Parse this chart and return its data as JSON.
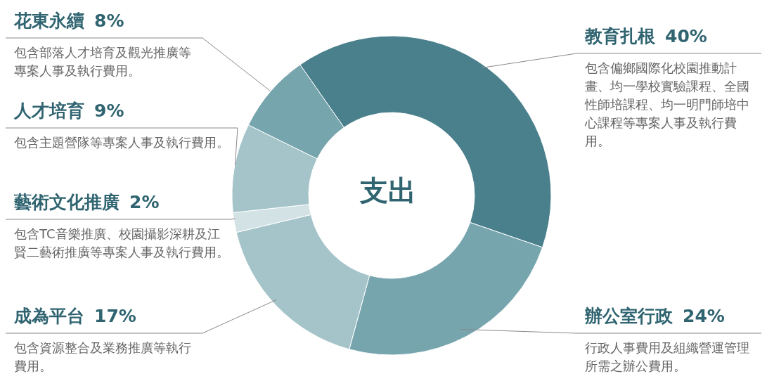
{
  "chart_data": {
    "type": "donut",
    "title": "支出",
    "categories": [
      "教育扎根",
      "辦公室行政",
      "成為平台",
      "藝術文化推廣",
      "人才培育",
      "花東永續"
    ],
    "values": [
      40,
      24,
      17,
      2,
      9,
      8
    ],
    "value_labels": [
      "40%",
      "24%",
      "17%",
      "2%",
      "9%",
      "8%"
    ],
    "colors": [
      "#4a808c",
      "#77a5ae",
      "#a4c4c9",
      "#d2e2e5",
      "#a4c4c9",
      "#77a5ae"
    ],
    "annotations": [
      "包含偏鄉國際化校園推動計畫、均一學校實驗課程、全國性師培課程、均一明門師培中心課程等專案人事及執行費用。",
      "行政人事費用及組織營運管理所需之辦公費用。",
      "包含資源整合及業務推廣等執行費用。",
      "包含TC音樂推廣、校園攝影深耕及江賢二藝術推廣等專案人事及執行費用。",
      "包含主題營隊等專案人事及執行費用。",
      "包含部落人才培育及觀光推廣等專案人事及執行費用。"
    ]
  }
}
